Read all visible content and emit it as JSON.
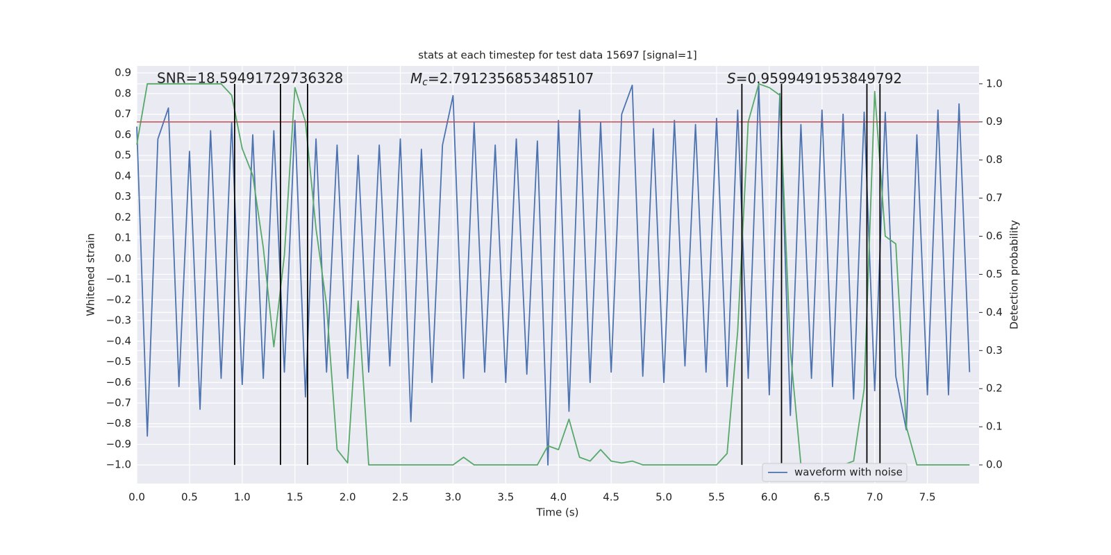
{
  "chart_data": {
    "type": "line",
    "title": "stats at each timestep for test data 15697 [signal=1]",
    "xlabel": "Time (s)",
    "ylabel": "Whitened strain",
    "y2label": "Detection probability",
    "annotations": [
      {
        "text": "SNR=18.59491729736328"
      },
      {
        "symbol": "M",
        "subscript": "c",
        "text": "=2.7912356853485107"
      },
      {
        "symbol": "S",
        "text": "=0.9599491953849792"
      }
    ],
    "x": [
      0.0,
      0.1,
      0.2,
      0.3,
      0.4,
      0.5,
      0.6,
      0.7,
      0.8,
      0.9,
      1.0,
      1.1,
      1.2,
      1.3,
      1.4,
      1.5,
      1.6,
      1.7,
      1.8,
      1.9,
      2.0,
      2.1,
      2.2,
      2.3,
      2.4,
      2.5,
      2.6,
      2.7,
      2.8,
      2.9,
      3.0,
      3.1,
      3.2,
      3.3,
      3.4,
      3.5,
      3.6,
      3.7,
      3.8,
      3.9,
      4.0,
      4.1,
      4.2,
      4.3,
      4.4,
      4.5,
      4.6,
      4.7,
      4.8,
      4.9,
      5.0,
      5.1,
      5.2,
      5.3,
      5.4,
      5.5,
      5.6,
      5.7,
      5.8,
      5.9,
      6.0,
      6.1,
      6.2,
      6.3,
      6.4,
      6.5,
      6.6,
      6.7,
      6.8,
      6.9,
      7.0,
      7.1,
      7.2,
      7.3,
      7.4,
      7.5,
      7.6,
      7.7,
      7.8,
      7.9
    ],
    "series": [
      {
        "name": "waveform with noise",
        "color": "#4c72b0",
        "values": [
          0.64,
          -0.86,
          0.58,
          0.73,
          -0.62,
          0.52,
          -0.73,
          0.62,
          -0.58,
          0.66,
          -0.61,
          0.6,
          -0.58,
          0.62,
          -0.55,
          0.67,
          -0.67,
          0.58,
          -0.55,
          0.55,
          -0.58,
          0.5,
          -0.55,
          0.55,
          -0.52,
          0.58,
          -0.79,
          0.53,
          -0.6,
          0.55,
          0.79,
          -0.58,
          0.66,
          -0.55,
          0.55,
          -0.6,
          0.58,
          -0.56,
          0.57,
          -1.0,
          0.67,
          -0.74,
          0.72,
          -0.6,
          0.66,
          -0.55,
          0.7,
          0.84,
          -0.57,
          0.63,
          -0.6,
          0.67,
          -0.52,
          0.65,
          -0.55,
          0.68,
          -0.62,
          0.72,
          -0.58,
          0.84,
          -0.66,
          0.8,
          -0.76,
          0.65,
          -0.58,
          0.72,
          -0.62,
          0.7,
          -0.68,
          0.71,
          -0.64,
          0.71,
          -0.57,
          -0.83,
          0.6,
          -0.66,
          0.72,
          -0.66,
          0.75,
          -0.55
        ]
      },
      {
        "color": "#55a868",
        "axis": "y2",
        "values": [
          0.84,
          1.0,
          1.0,
          1.0,
          1.0,
          1.0,
          1.0,
          1.0,
          1.0,
          0.97,
          0.83,
          0.76,
          0.57,
          0.31,
          0.55,
          0.99,
          0.9,
          0.62,
          0.42,
          0.04,
          0.005,
          0.43,
          0.0,
          0.0,
          0.0,
          0.0,
          0.0,
          0.0,
          0.0,
          0.0,
          0.0,
          0.02,
          0.0,
          0.0,
          0.0,
          0.0,
          0.0,
          0.0,
          0.0,
          0.05,
          0.04,
          0.12,
          0.02,
          0.01,
          0.04,
          0.01,
          0.005,
          0.01,
          0.0,
          0.0,
          0.0,
          0.0,
          0.0,
          0.0,
          0.0,
          0.0,
          0.03,
          0.35,
          0.9,
          1.0,
          0.99,
          0.97,
          0.3,
          0.0,
          0.0,
          0.0,
          0.0,
          0.0,
          0.01,
          0.2,
          0.98,
          0.6,
          0.58,
          0.1,
          0.0,
          0.0,
          0.0,
          0.0,
          0.0,
          0.0
        ]
      }
    ],
    "threshold": 0.9,
    "threshold_color": "#c44e52",
    "vlines": [
      0.928,
      1.363,
      1.62,
      5.74,
      6.116,
      6.926,
      7.05
    ],
    "vline_span": [
      0,
      1
    ],
    "vline_color": "#000000",
    "xlim": [
      0,
      7.99
    ],
    "xticks": [
      {
        "value": 0,
        "label": "0.0"
      },
      0.5,
      {
        "value": 1,
        "label": "1.0"
      },
      1.5,
      {
        "value": 2,
        "label": "2.0"
      },
      2.5,
      {
        "value": 3,
        "label": "3.0"
      },
      3.5,
      {
        "value": 4,
        "label": "4.0"
      },
      4.5,
      {
        "value": 5,
        "label": "5.0"
      },
      5.5,
      {
        "value": 6,
        "label": "6.0"
      },
      6.5,
      {
        "value": 7,
        "label": "7.0"
      },
      7.5
    ],
    "ylim": [
      -1.09,
      0.934
    ],
    "yticks": [
      0.9,
      0.8,
      0.7,
      0.6,
      0.5,
      0.4,
      0.3,
      0.2,
      0.1,
      {
        "value": 0,
        "label": "0.0"
      },
      {
        "value": -0.1,
        "label": "−0.1"
      },
      {
        "value": -0.2,
        "label": "−0.2"
      },
      {
        "value": -0.3,
        "label": "−0.3"
      },
      {
        "value": -0.4,
        "label": "−0.4"
      },
      {
        "value": -0.5,
        "label": "−0.5"
      },
      {
        "value": -0.6,
        "label": "−0.6"
      },
      {
        "value": -0.7,
        "label": "−0.7"
      },
      {
        "value": -0.8,
        "label": "−0.8"
      },
      {
        "value": -0.9,
        "label": "−0.9"
      },
      {
        "value": -1,
        "label": "−1.0"
      }
    ],
    "y2lim": [
      -0.049,
      1.047
    ],
    "y2ticks": [
      {
        "value": 0,
        "label": "0.0"
      },
      0.1,
      0.2,
      0.3,
      0.4,
      0.5,
      0.6,
      0.7,
      0.8,
      0.9,
      {
        "value": 1,
        "label": "1.0"
      }
    ],
    "grid": true,
    "legend": "lower right"
  }
}
